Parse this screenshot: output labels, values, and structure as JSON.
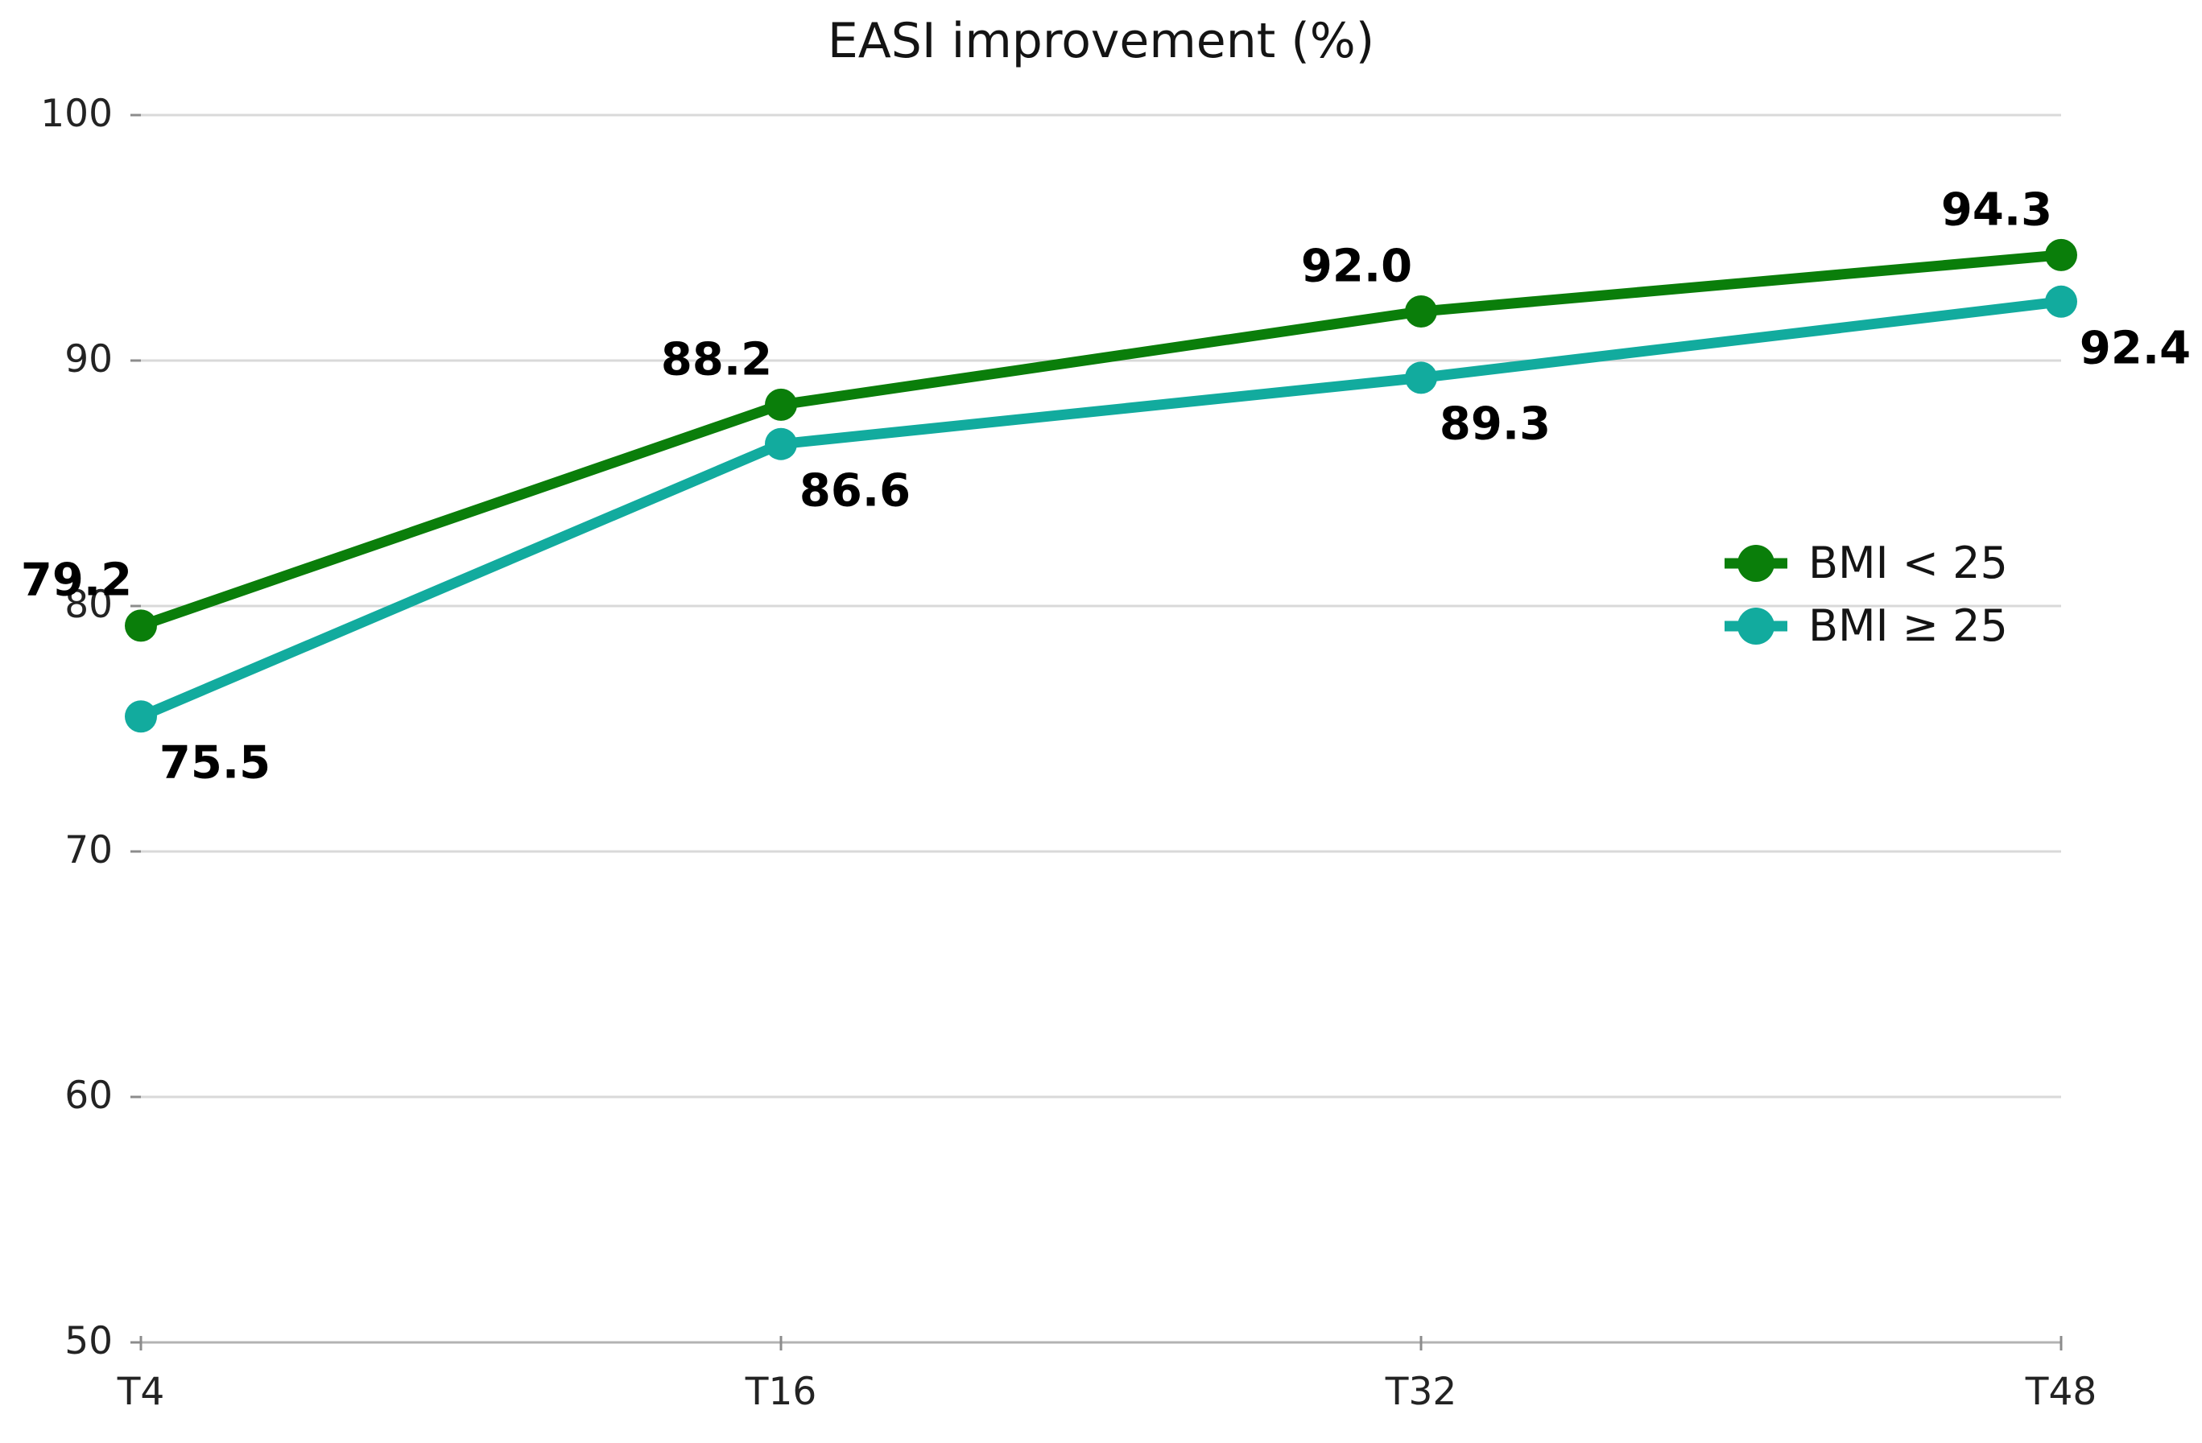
{
  "chart_data": {
    "type": "line",
    "title": "EASI improvement (%)",
    "categories": [
      "T4",
      "T16",
      "T32",
      "T48"
    ],
    "series": [
      {
        "name": "BMI < 25",
        "color": "#0a7e0a",
        "values": [
          79.2,
          88.2,
          92.0,
          94.3
        ],
        "labels": [
          "79.2",
          "88.2",
          "92.0",
          "94.3"
        ],
        "label_side": "above-left"
      },
      {
        "name": "BMI ≥ 25",
        "color": "#12ab9e",
        "values": [
          75.5,
          86.6,
          89.3,
          92.4
        ],
        "labels": [
          "75.5",
          "86.6",
          "89.3",
          "92.4"
        ],
        "label_side": "below-right"
      }
    ],
    "ylim": [
      50,
      100
    ],
    "y_ticks": [
      100,
      90,
      80,
      70,
      60,
      50
    ],
    "xlabel": "",
    "ylabel": "",
    "grid": "horizontal",
    "legend_position": "right-middle",
    "gridline_color": "#d9d9d9",
    "axis_color": "#b3b3b3",
    "tick_mark_color": "#8c8c8c",
    "text_color": "#232323",
    "data_label_color": "#000000"
  }
}
